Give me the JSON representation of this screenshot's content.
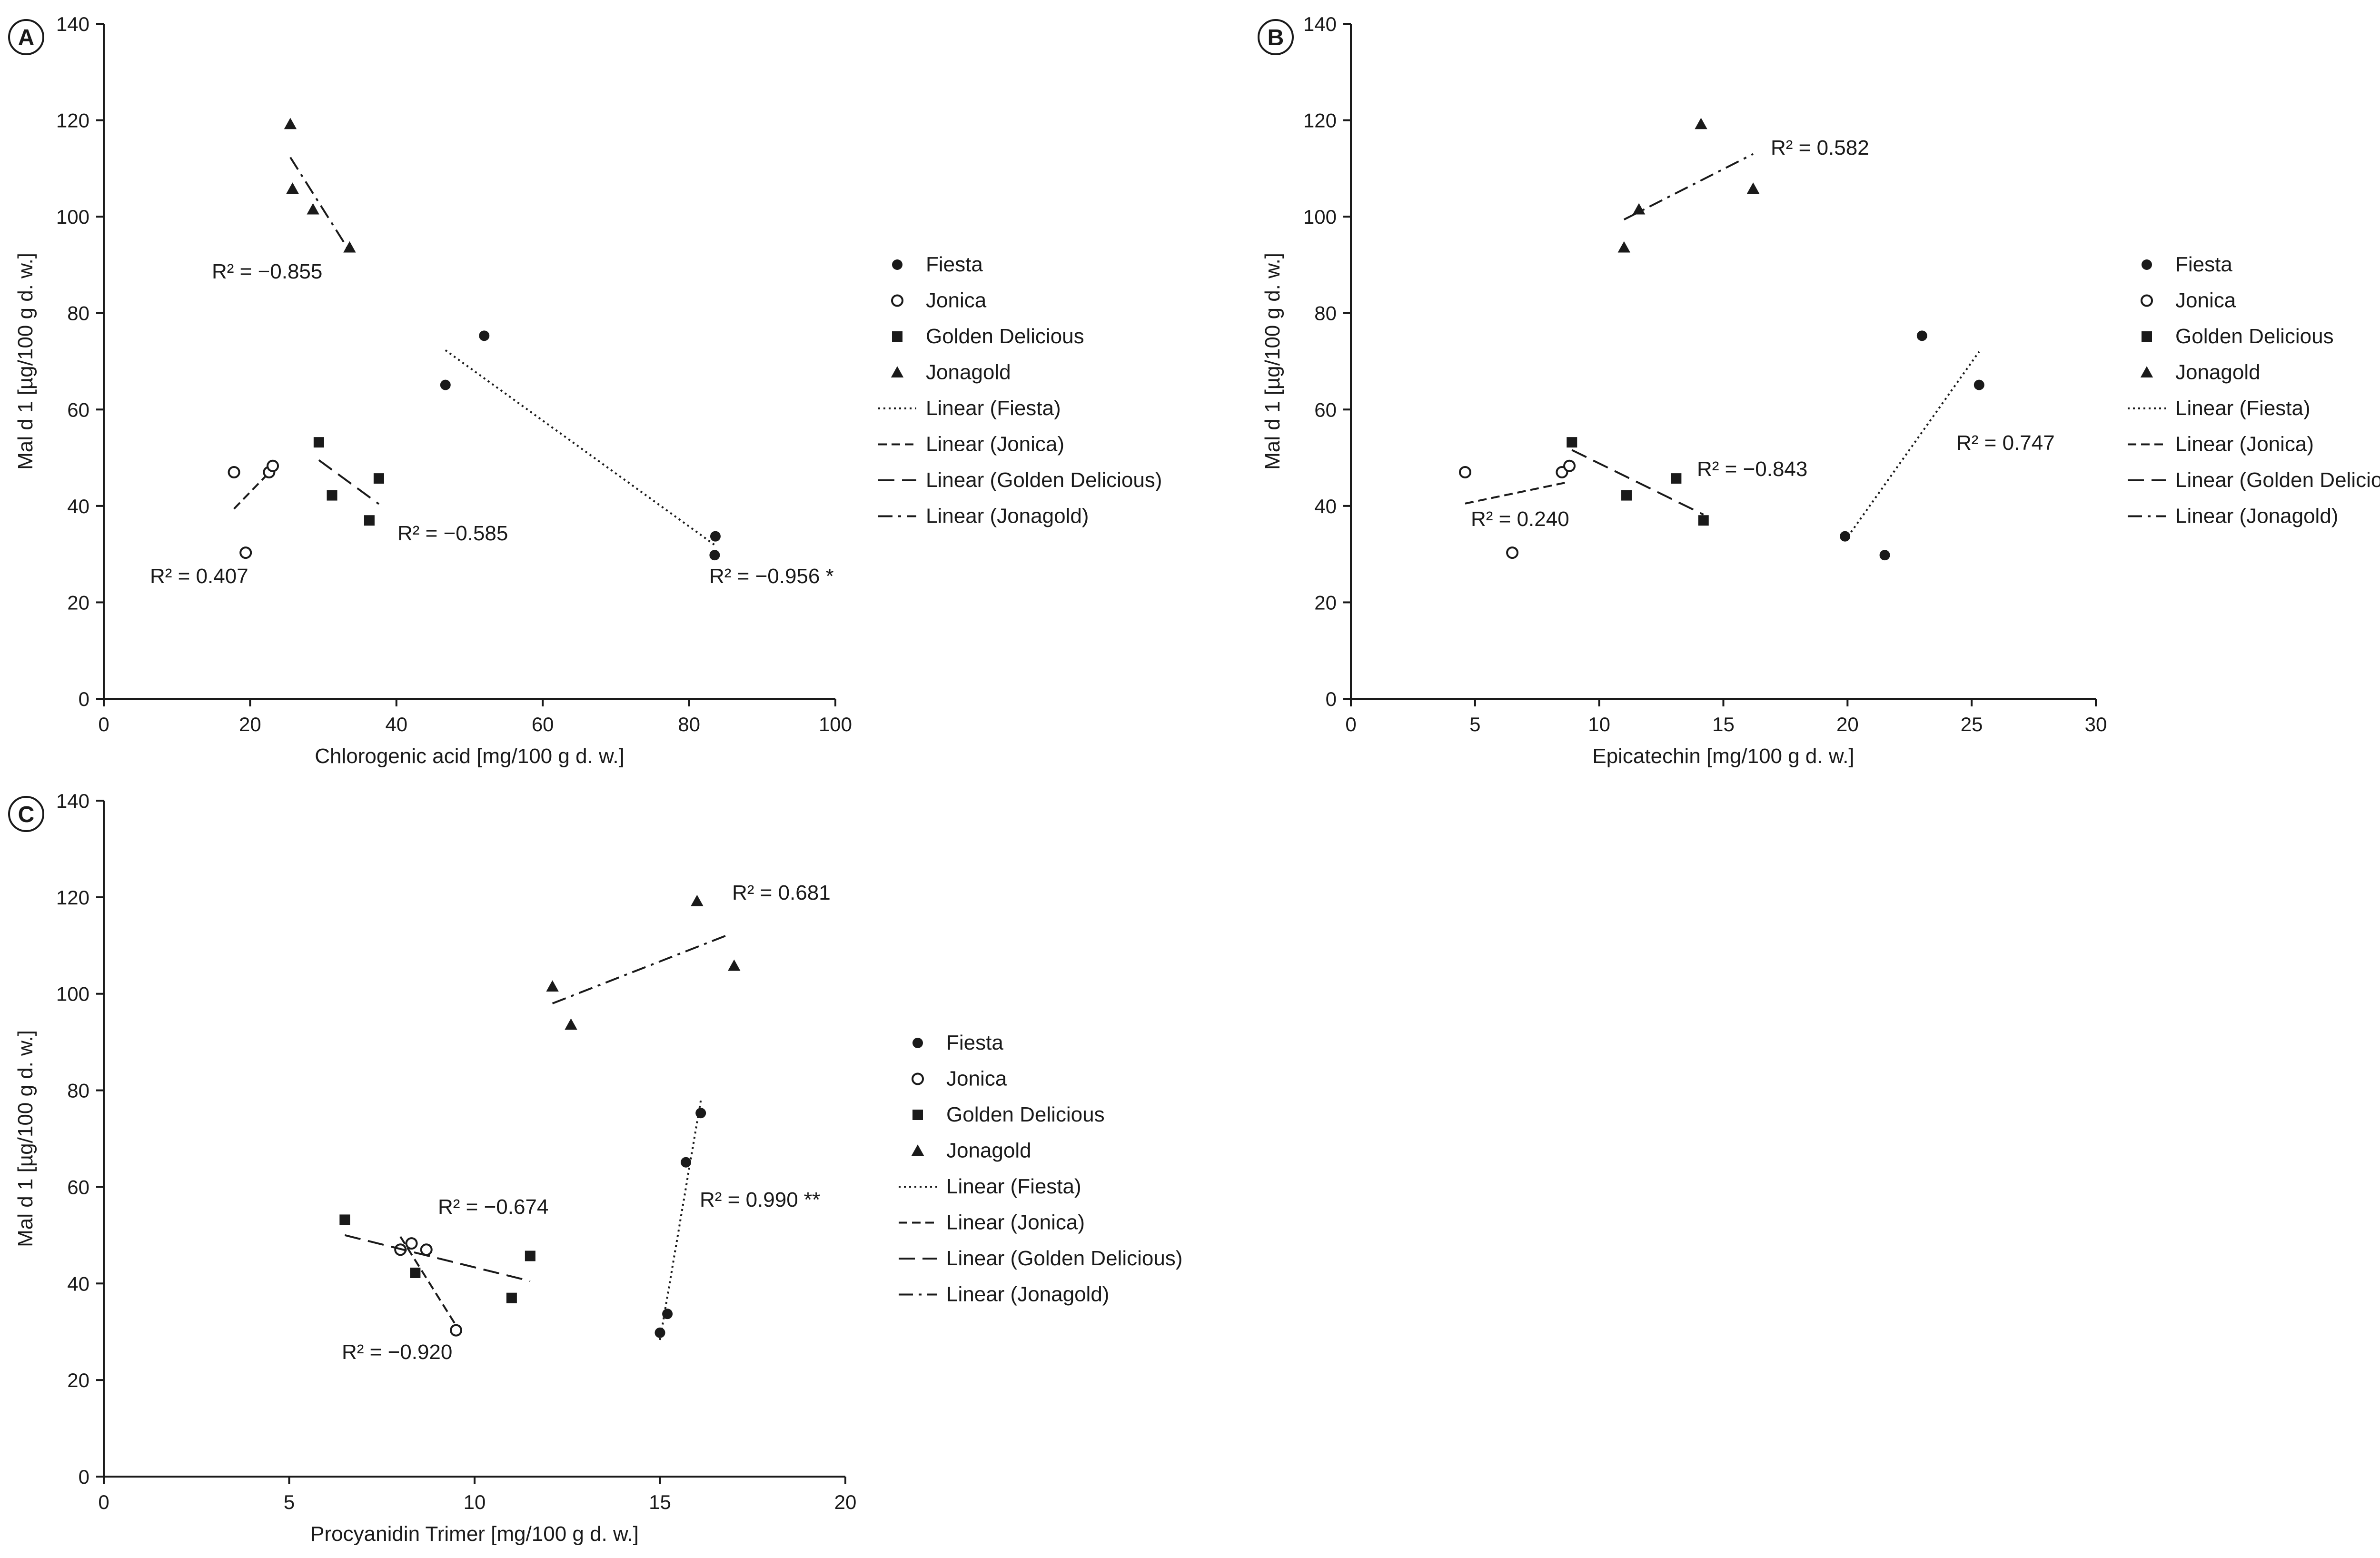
{
  "colors": {
    "ink": "#1a1a1a",
    "background": "#ffffff"
  },
  "chart_data": [
    {
      "panel": "A",
      "type": "scatter",
      "xlabel": "Chlorogenic acid [mg/100 g d. w.]",
      "ylabel": "Mal d 1 [µg/100 g d. w.]",
      "xlim": [
        0,
        100
      ],
      "ylim": [
        0,
        140
      ],
      "xticks": [
        0,
        20,
        40,
        60,
        80,
        100
      ],
      "yticks": [
        0,
        20,
        40,
        60,
        80,
        100,
        120,
        140
      ],
      "series": [
        {
          "name": "Fiesta",
          "marker": "filled-circle",
          "trend": "Linear (Fiesta)",
          "dash": "dotted",
          "points": [
            [
              46.7,
              65.1
            ],
            [
              52.0,
              75.3
            ],
            [
              83.6,
              33.7
            ],
            [
              83.5,
              29.8
            ]
          ],
          "fit": [
            [
              46.7,
              72.3
            ],
            [
              83.6,
              31.8
            ]
          ],
          "r2": "R² = −0.956 *"
        },
        {
          "name": "Jonica",
          "marker": "open-circle",
          "trend": "Linear (Jonica)",
          "dash": "short-dash",
          "points": [
            [
              17.8,
              47.0
            ],
            [
              19.4,
              30.3
            ],
            [
              22.6,
              47.0
            ],
            [
              23.1,
              48.3
            ]
          ],
          "fit": [
            [
              17.8,
              39.4
            ],
            [
              23.1,
              47.7
            ]
          ],
          "r2": "R² = 0.407"
        },
        {
          "name": "Golden Delicious",
          "marker": "filled-square",
          "trend": "Linear (Golden Delicious)",
          "dash": "long-dash",
          "points": [
            [
              29.4,
              53.2
            ],
            [
              31.2,
              42.2
            ],
            [
              36.3,
              37.0
            ],
            [
              37.6,
              45.7
            ]
          ],
          "fit": [
            [
              29.4,
              49.5
            ],
            [
              37.6,
              40.4
            ]
          ],
          "r2": "R² = −0.585"
        },
        {
          "name": "Jonagold",
          "marker": "filled-triangle",
          "trend": "Linear (Jonagold)",
          "dash": "dash-dot",
          "points": [
            [
              25.5,
              119.2
            ],
            [
              25.8,
              105.8
            ],
            [
              28.6,
              101.5
            ],
            [
              33.6,
              93.6
            ]
          ],
          "fit": [
            [
              25.5,
              112.3
            ],
            [
              33.6,
              92.8
            ]
          ],
          "r2": "R² = −0.855"
        }
      ],
      "legend": [
        "Fiesta",
        "Jonica",
        "Golden Delicious",
        "Jonagold",
        "Linear (Fiesta)",
        "Linear (Jonica)",
        "Linear (Golden Delicious)",
        "Linear (Jonagold)"
      ]
    },
    {
      "panel": "B",
      "type": "scatter",
      "xlabel": "Epicatechin [mg/100 g d. w.]",
      "ylabel": "Mal d 1 [µg/100 g d. w.]",
      "xlim": [
        0,
        30
      ],
      "ylim": [
        0,
        140
      ],
      "xticks": [
        0,
        5,
        10,
        15,
        20,
        25,
        30
      ],
      "yticks": [
        0,
        20,
        40,
        60,
        80,
        100,
        120,
        140
      ],
      "series": [
        {
          "name": "Fiesta",
          "marker": "filled-circle",
          "trend": "Linear (Fiesta)",
          "dash": "dotted",
          "points": [
            [
              19.9,
              33.7
            ],
            [
              21.5,
              29.8
            ],
            [
              23.0,
              75.3
            ],
            [
              25.3,
              65.1
            ]
          ],
          "fit": [
            [
              19.9,
              32.8
            ],
            [
              25.3,
              72.0
            ]
          ],
          "r2": "R² = 0.747"
        },
        {
          "name": "Jonica",
          "marker": "open-circle",
          "trend": "Linear (Jonica)",
          "dash": "short-dash",
          "points": [
            [
              4.6,
              47.0
            ],
            [
              6.5,
              30.3
            ],
            [
              8.5,
              47.0
            ],
            [
              8.8,
              48.3
            ]
          ],
          "fit": [
            [
              4.6,
              40.5
            ],
            [
              8.8,
              45.0
            ]
          ],
          "r2": "R² = 0.240"
        },
        {
          "name": "Golden Delicious",
          "marker": "filled-square",
          "trend": "Linear (Golden Delicious)",
          "dash": "long-dash",
          "points": [
            [
              8.9,
              53.2
            ],
            [
              11.1,
              42.2
            ],
            [
              13.1,
              45.7
            ],
            [
              14.2,
              37.0
            ]
          ],
          "fit": [
            [
              8.9,
              51.6
            ],
            [
              14.2,
              38.2
            ]
          ],
          "r2": "R² = −0.843"
        },
        {
          "name": "Jonagold",
          "marker": "filled-triangle",
          "trend": "Linear (Jonagold)",
          "dash": "dash-dot",
          "points": [
            [
              11.0,
              93.6
            ],
            [
              11.6,
              101.5
            ],
            [
              14.1,
              119.2
            ],
            [
              16.2,
              105.8
            ]
          ],
          "fit": [
            [
              11.0,
              99.4
            ],
            [
              16.2,
              113.0
            ]
          ],
          "r2": "R² = 0.582"
        }
      ],
      "legend": [
        "Fiesta",
        "Jonica",
        "Golden Delicious",
        "Jonagold",
        "Linear (Fiesta)",
        "Linear (Jonica)",
        "Linear (Golden Delicious)",
        "Linear (Jonagold)"
      ]
    },
    {
      "panel": "C",
      "type": "scatter",
      "xlabel": "Procyanidin Trimer [mg/100 g d. w.]",
      "ylabel": "Mal d 1 [µg/100 g d. w.]",
      "xlim": [
        0,
        20
      ],
      "ylim": [
        0,
        140
      ],
      "xticks": [
        0,
        5,
        10,
        15,
        20
      ],
      "yticks": [
        0,
        20,
        40,
        60,
        80,
        100,
        120,
        140
      ],
      "series": [
        {
          "name": "Fiesta",
          "marker": "filled-circle",
          "trend": "Linear (Fiesta)",
          "dash": "dotted",
          "points": [
            [
              15.0,
              29.8
            ],
            [
              15.2,
              33.7
            ],
            [
              15.7,
              65.1
            ],
            [
              16.1,
              75.3
            ]
          ],
          "fit": [
            [
              15.0,
              28.3
            ],
            [
              16.1,
              77.9
            ]
          ],
          "r2": "R² = 0.990 **"
        },
        {
          "name": "Jonica",
          "marker": "open-circle",
          "trend": "Linear (Jonica)",
          "dash": "short-dash",
          "points": [
            [
              8.0,
              47.0
            ],
            [
              8.3,
              48.3
            ],
            [
              8.7,
              47.0
            ],
            [
              9.5,
              30.3
            ]
          ],
          "fit": [
            [
              8.0,
              49.7
            ],
            [
              9.5,
              31.3
            ]
          ],
          "r2": "R² = −0.920"
        },
        {
          "name": "Golden Delicious",
          "marker": "filled-square",
          "trend": "Linear (Golden Delicious)",
          "dash": "long-dash",
          "points": [
            [
              6.5,
              53.2
            ],
            [
              8.4,
              42.2
            ],
            [
              11.0,
              37.0
            ],
            [
              11.5,
              45.7
            ]
          ],
          "fit": [
            [
              6.5,
              50.0
            ],
            [
              11.5,
              40.5
            ]
          ],
          "r2": "R² = −0.674"
        },
        {
          "name": "Jonagold",
          "marker": "filled-triangle",
          "trend": "Linear (Jonagold)",
          "dash": "dash-dot",
          "points": [
            [
              12.1,
              101.5
            ],
            [
              12.6,
              93.6
            ],
            [
              16.0,
              119.2
            ],
            [
              17.0,
              105.8
            ]
          ],
          "fit": [
            [
              12.1,
              98.0
            ],
            [
              16.9,
              112.4
            ]
          ],
          "r2": "R² = 0.681"
        }
      ],
      "legend": [
        "Fiesta",
        "Jonica",
        "Golden Delicious",
        "Jonagold",
        "Linear (Fiesta)",
        "Linear (Jonica)",
        "Linear (Golden Delicious)",
        "Linear (Jonagold)"
      ]
    }
  ]
}
